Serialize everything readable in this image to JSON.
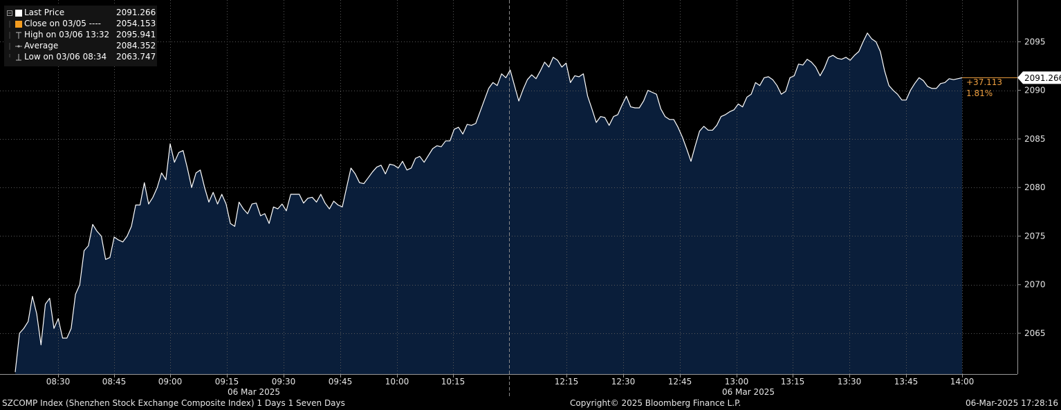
{
  "legend": {
    "items": [
      {
        "label": "Last Price",
        "value": "2091.266",
        "swatch": "#ffffff"
      },
      {
        "label": "Close on 03/05 ----",
        "value": "2054.153",
        "swatch": "#f39c1f"
      },
      {
        "label": "High on 03/06 13:32",
        "value": "2095.941"
      },
      {
        "label": "Average",
        "value": "2084.352"
      },
      {
        "label": "Low on 03/06 08:34",
        "value": "2063.747"
      }
    ]
  },
  "chart_data": {
    "type": "area",
    "series": [
      {
        "values": [
          2061.0,
          2065.0,
          2065.5,
          2066.2,
          2068.8,
          2067.0,
          2063.8,
          2068.0,
          2068.6,
          2065.5,
          2066.5,
          2064.5,
          2064.5,
          2065.5,
          2069.0,
          2070.0,
          2073.5,
          2074.0,
          2076.2,
          2075.5,
          2075.0,
          2072.6,
          2072.8,
          2074.9,
          2074.6,
          2074.4,
          2075.0,
          2076.0,
          2078.2,
          2078.2,
          2080.5,
          2078.3,
          2079.0,
          2080.0,
          2081.5,
          2080.8,
          2084.5,
          2082.6,
          2083.6,
          2083.8,
          2082.0,
          2080.0,
          2081.5,
          2081.8,
          2080.0,
          2078.5,
          2079.5,
          2078.3,
          2079.3,
          2078.3,
          2076.3,
          2076.0,
          2078.5,
          2077.8,
          2077.3,
          2078.3,
          2078.4,
          2077.1,
          2077.3,
          2076.3,
          2078.0,
          2077.8,
          2078.3,
          2077.6,
          2079.3,
          2079.3,
          2079.3,
          2078.4,
          2078.9,
          2079.0,
          2078.5,
          2079.3,
          2078.4,
          2077.8,
          2078.6,
          2078.2,
          2078.0,
          2080.0,
          2082.0,
          2081.4,
          2080.5,
          2080.4,
          2081.0,
          2081.6,
          2082.1,
          2082.3,
          2081.4,
          2082.4,
          2082.3,
          2082.0,
          2082.7,
          2081.8,
          2082.0,
          2083.0,
          2083.2,
          2082.6,
          2083.3,
          2084.0,
          2084.3,
          2084.2,
          2084.8,
          2084.8,
          2086.0,
          2086.2,
          2085.5,
          2086.5,
          2086.4,
          2086.6,
          2087.8,
          2089.0,
          2090.2,
          2090.8,
          2090.5,
          2091.7,
          2091.3,
          2092.1,
          2090.5,
          2088.9,
          2090.1,
          2091.1,
          2091.6,
          2091.2,
          2092.0,
          2092.9,
          2092.4,
          2093.4,
          2093.1,
          2092.4,
          2092.8,
          2090.8,
          2091.5,
          2091.4,
          2091.7,
          2089.4,
          2088.1,
          2086.7,
          2087.3,
          2087.2,
          2086.4,
          2087.3,
          2087.5,
          2088.5,
          2089.4,
          2088.3,
          2088.2,
          2088.2,
          2088.9,
          2090.0,
          2089.8,
          2089.6,
          2088.1,
          2087.3,
          2087.0,
          2087.0,
          2086.2,
          2085.2,
          2084.0,
          2082.7,
          2084.3,
          2085.8,
          2086.3,
          2085.9,
          2085.9,
          2086.4,
          2087.3,
          2087.5,
          2087.8,
          2088.0,
          2088.6,
          2088.3,
          2089.3,
          2089.6,
          2090.8,
          2090.5,
          2091.3,
          2091.4,
          2091.1,
          2090.5,
          2089.6,
          2089.9,
          2091.3,
          2091.5,
          2092.7,
          2092.6,
          2093.2,
          2092.9,
          2092.4,
          2091.5,
          2092.3,
          2093.4,
          2093.6,
          2093.3,
          2093.2,
          2093.4,
          2093.1,
          2093.6,
          2094.0,
          2095.0,
          2095.9,
          2095.3,
          2095.0,
          2094.0,
          2092.0,
          2090.5,
          2090.0,
          2089.6,
          2089.0,
          2089.0,
          2090.0,
          2090.7,
          2091.3,
          2091.0,
          2090.4,
          2090.2,
          2090.2,
          2090.7,
          2090.8,
          2091.2,
          2091.1,
          2091.2,
          2091.3
        ]
      }
    ],
    "ylim": [
      2060.8,
      2099.3
    ],
    "y_ticks": [
      "2065",
      "2070",
      "2075",
      "2080",
      "2085",
      "2090",
      "2095"
    ],
    "x_ticks": [
      "08:30",
      "08:45",
      "09:00",
      "09:15",
      "09:30",
      "09:45",
      "10:00",
      "10:15",
      "12:15",
      "12:30",
      "12:45",
      "13:00",
      "13:15",
      "13:30",
      "13:45",
      "14:00"
    ],
    "date_labels": [
      "06 Mar 2025",
      "06 Mar 2025"
    ],
    "last_value_label": "2091.266",
    "change_label": "+37.113",
    "change_pct_label": "1.81%",
    "grid": true,
    "legend_position": "top-left",
    "colors": {
      "line": "#ffffff",
      "fill": "#0a1e3a",
      "grid": "#5a5a5a",
      "change": "#f0a040",
      "axis_text": "#e6e6e6"
    }
  },
  "footer": {
    "left": "SZCOMP Index (Shenzhen Stock Exchange Composite Index) 1 Days 1 Seven Days",
    "center": "Copyright© 2025 Bloomberg Finance L.P.",
    "right": "06-Mar-2025 17:28:16"
  }
}
